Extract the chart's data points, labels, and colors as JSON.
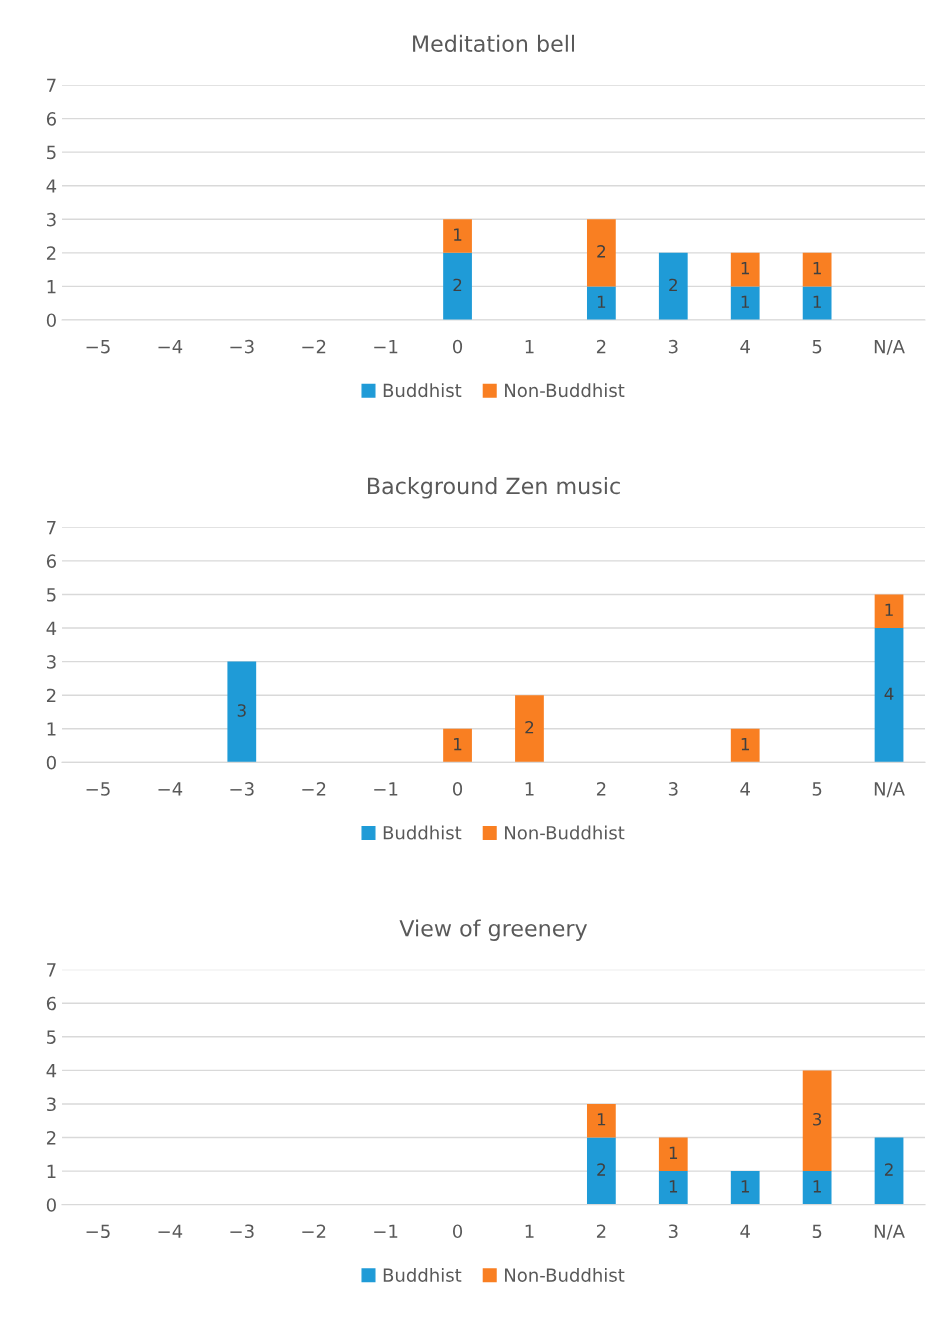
{
  "chart_data": [
    {
      "type": "bar",
      "title": "Meditation bell",
      "stacked": true,
      "data_labels": true,
      "grid": "y",
      "legend": "bottom",
      "ylim": [
        0,
        7
      ],
      "yticks": [
        0,
        1,
        2,
        3,
        4,
        5,
        6,
        7
      ],
      "categories": [
        "−5",
        "−4",
        "−3",
        "−2",
        "−1",
        "0",
        "1",
        "2",
        "3",
        "4",
        "5",
        "N/A"
      ],
      "series": [
        {
          "name": "Buddhist",
          "color": "#1f9bd7",
          "values": [
            null,
            null,
            null,
            null,
            null,
            2,
            null,
            1,
            2,
            1,
            1,
            null
          ]
        },
        {
          "name": "Non-Buddhist",
          "color": "#f97f22",
          "values": [
            null,
            null,
            null,
            null,
            null,
            1,
            null,
            2,
            null,
            1,
            1,
            null
          ]
        }
      ]
    },
    {
      "type": "bar",
      "title": "Background Zen music",
      "stacked": true,
      "data_labels": true,
      "grid": "y",
      "legend": "bottom",
      "ylim": [
        0,
        7
      ],
      "yticks": [
        0,
        1,
        2,
        3,
        4,
        5,
        6,
        7
      ],
      "categories": [
        "−5",
        "−4",
        "−3",
        "−2",
        "−1",
        "0",
        "1",
        "2",
        "3",
        "4",
        "5",
        "N/A"
      ],
      "series": [
        {
          "name": "Buddhist",
          "color": "#1f9bd7",
          "values": [
            null,
            null,
            3,
            null,
            null,
            null,
            null,
            null,
            null,
            null,
            null,
            4
          ]
        },
        {
          "name": "Non-Buddhist",
          "color": "#f97f22",
          "values": [
            null,
            null,
            null,
            null,
            null,
            1,
            2,
            null,
            null,
            1,
            null,
            1
          ]
        }
      ]
    },
    {
      "type": "bar",
      "title": "View of greenery",
      "stacked": true,
      "data_labels": true,
      "grid": "y",
      "legend": "bottom",
      "ylim": [
        0,
        7
      ],
      "yticks": [
        0,
        1,
        2,
        3,
        4,
        5,
        6,
        7
      ],
      "categories": [
        "−5",
        "−4",
        "−3",
        "−2",
        "−1",
        "0",
        "1",
        "2",
        "3",
        "4",
        "5",
        "N/A"
      ],
      "series": [
        {
          "name": "Buddhist",
          "color": "#1f9bd7",
          "values": [
            null,
            null,
            null,
            null,
            null,
            null,
            null,
            2,
            1,
            1,
            1,
            2
          ]
        },
        {
          "name": "Non-Buddhist",
          "color": "#f97f22",
          "values": [
            null,
            null,
            null,
            null,
            null,
            null,
            null,
            1,
            1,
            null,
            3,
            null
          ]
        }
      ]
    }
  ]
}
